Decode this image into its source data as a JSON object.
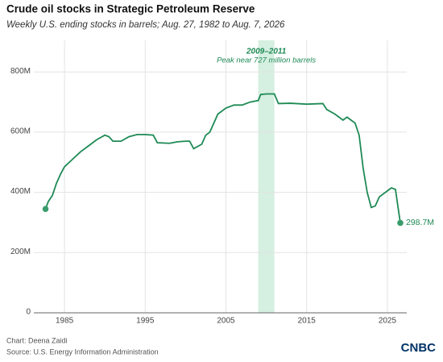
{
  "chart_data": {
    "type": "line",
    "title": "Crude oil stocks in Strategic Petroleum Reserve",
    "subtitle": "Weekly U.S. ending stocks in barrels; Aug. 27, 1982 to Aug. 7, 2026",
    "credit": "Chart: Deena Zaidi",
    "source": "Source: U.S. Energy Information Administration",
    "logo": "CNBC",
    "highlight": {
      "start": 2009,
      "end": 2011,
      "label": "2009–2011",
      "note": "Peak near 727 million barrels",
      "color": "#d5efe1"
    },
    "xlim": [
      1981.2,
      2027.4
    ],
    "xticks": [
      1985,
      1995,
      2005,
      2015,
      2025
    ],
    "ylim": [
      0,
      905000000
    ],
    "yticks": [
      {
        "value": 0,
        "label": "0"
      },
      {
        "value": 200000000,
        "label": "200M"
      },
      {
        "value": 400000000,
        "label": "400M"
      },
      {
        "value": 600000000,
        "label": "600M"
      },
      {
        "value": 800000000,
        "label": "800M"
      }
    ],
    "grid": true,
    "series": [
      {
        "color": "#1e8a55",
        "x": [
          1982.65,
          1983,
          1983.5,
          1984,
          1984.5,
          1985,
          1986,
          1987,
          1988,
          1989,
          1990,
          1990.5,
          1991,
          1992,
          1993,
          1994,
          1995,
          1996,
          1996.5,
          1998,
          1999,
          2000,
          2000.5,
          2001,
          2002,
          2002.5,
          2003,
          2004,
          2005,
          2006,
          2007,
          2008,
          2009,
          2009.3,
          2010,
          2011,
          2011.5,
          2013,
          2015,
          2017,
          2017.5,
          2018.5,
          2019.5,
          2020,
          2020.5,
          2021,
          2021.5,
          2022,
          2022.5,
          2023,
          2023.5,
          2024,
          2025,
          2025.5,
          2026,
          2026.6
        ],
        "values": [
          345000000,
          370000000,
          390000000,
          430000000,
          460000000,
          485000000,
          510000000,
          535000000,
          555000000,
          575000000,
          590000000,
          585000000,
          570000000,
          570000000,
          585000000,
          592000000,
          592000000,
          590000000,
          565000000,
          563000000,
          568000000,
          570000000,
          570000000,
          545000000,
          560000000,
          590000000,
          600000000,
          660000000,
          680000000,
          690000000,
          690000000,
          700000000,
          705000000,
          725000000,
          727000000,
          727000000,
          695000000,
          696000000,
          693000000,
          695000000,
          675000000,
          660000000,
          640000000,
          650000000,
          640000000,
          630000000,
          590000000,
          480000000,
          400000000,
          350000000,
          355000000,
          385000000,
          405000000,
          415000000,
          410000000,
          298700000
        ],
        "value_labels": [
          null,
          null,
          null,
          null,
          null,
          null,
          null,
          null,
          null,
          null,
          null,
          null,
          null,
          null,
          null,
          null,
          null,
          null,
          null,
          null,
          null,
          null,
          null,
          null,
          null,
          null,
          null,
          null,
          null,
          null,
          null,
          null,
          null,
          null,
          null,
          null,
          null,
          null,
          null,
          null,
          null,
          null,
          null,
          null,
          null,
          null,
          null,
          null,
          null,
          null,
          null,
          null,
          null,
          null,
          null,
          "298.7M"
        ]
      }
    ]
  }
}
